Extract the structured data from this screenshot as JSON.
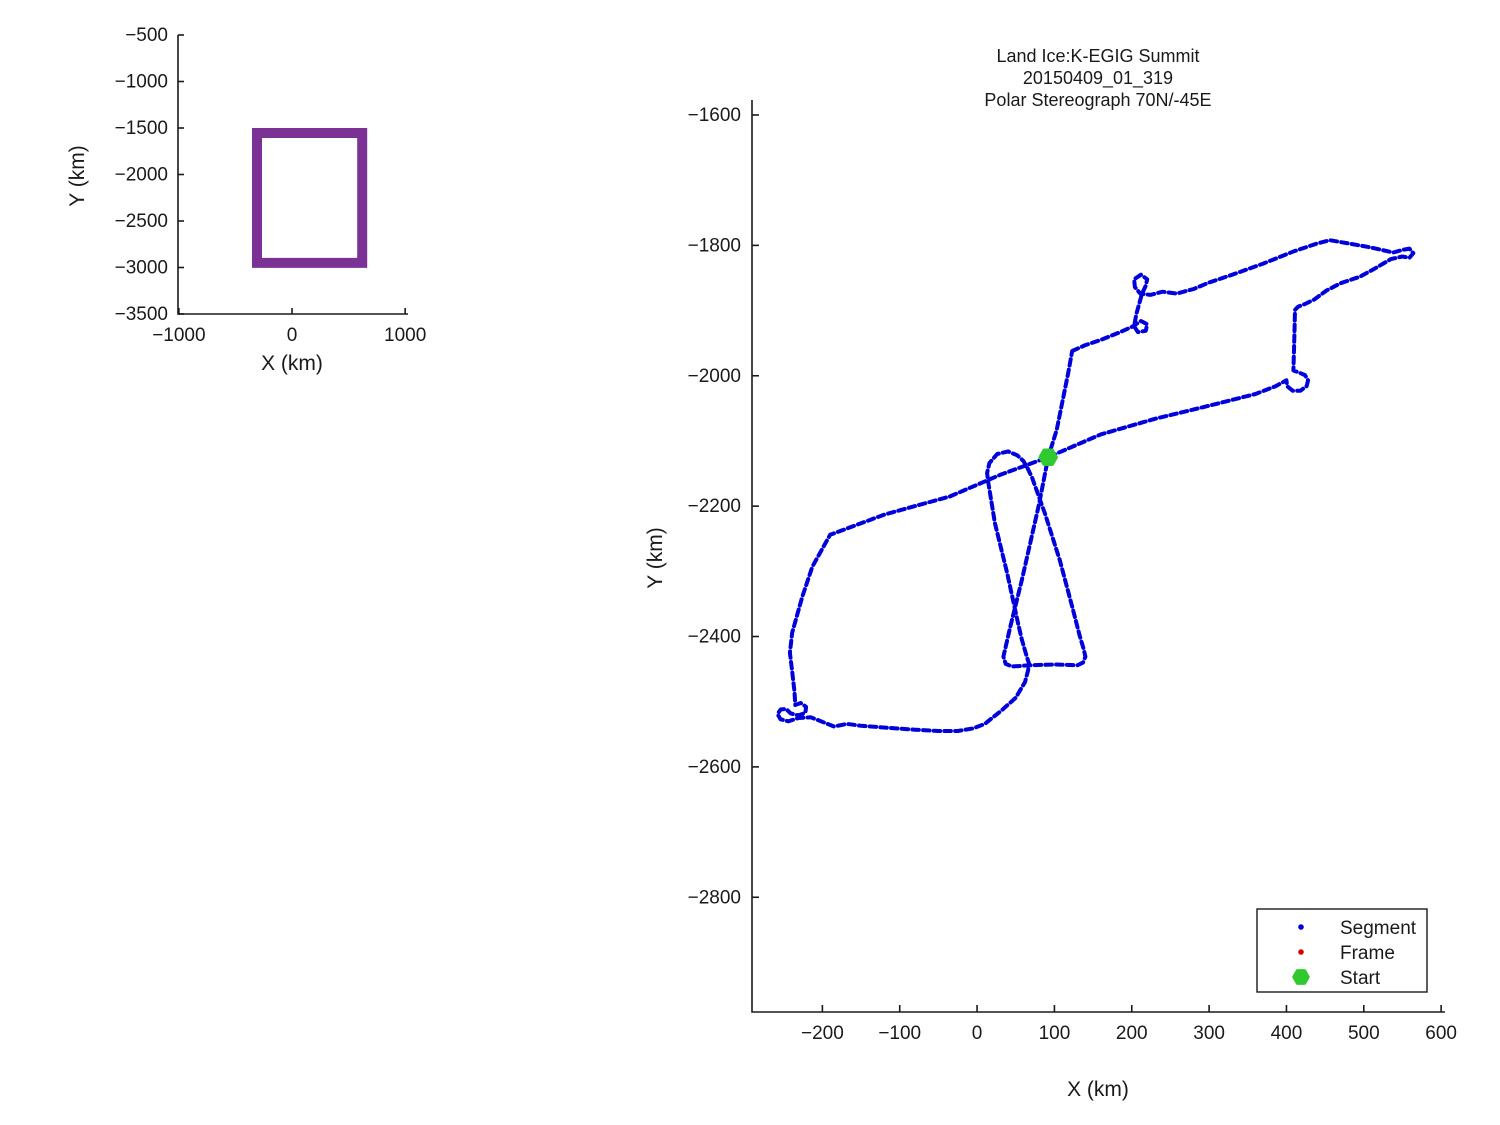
{
  "window": {
    "background": "#ffffff"
  },
  "chart_data": [
    {
      "id": "overview-extent",
      "type": "line",
      "xlabel": "X (km)",
      "ylabel": "Y (km)",
      "x_ticks": [
        -1000,
        0,
        1000
      ],
      "y_ticks": [
        -500,
        -1000,
        -1500,
        -2000,
        -2500,
        -3000,
        -3500
      ],
      "xlim": [
        -1008,
        1025
      ],
      "ylim": [
        -3500,
        -500
      ],
      "grid": false,
      "series": [
        {
          "name": "flight-extent-box",
          "color": "#7b3294",
          "line_width": 10,
          "style": "solid",
          "points": [
            [
              -310,
              -1554
            ],
            [
              620,
              -1554
            ],
            [
              620,
              -2951
            ],
            [
              -310,
              -2951
            ],
            [
              -310,
              -1554
            ]
          ]
        }
      ]
    },
    {
      "id": "flight-track",
      "type": "line",
      "title_lines": [
        "Land Ice:K-EGIG Summit",
        "20150409_01_319",
        "Polar Stereograph 70N/-45E"
      ],
      "xlabel": "X (km)",
      "ylabel": "Y (km)",
      "x_ticks": [
        -200,
        -100,
        0,
        100,
        200,
        300,
        400,
        500,
        600
      ],
      "y_ticks": [
        -1600,
        -1800,
        -2000,
        -2200,
        -2400,
        -2600,
        -2800
      ],
      "xlim": [
        -291,
        605
      ],
      "ylim": [
        -2976,
        -1577
      ],
      "grid": false,
      "colors": {
        "segment": "#0000dd",
        "frame": "#dd0000",
        "start": "#30c930"
      },
      "legend": {
        "position": "lower right",
        "items": [
          {
            "label": "Segment",
            "color": "#0000dd",
            "marker": "dot"
          },
          {
            "label": "Frame",
            "color": "#dd0000",
            "marker": "dot"
          },
          {
            "label": "Start",
            "color": "#30c930",
            "marker": "hex-star"
          }
        ]
      },
      "start_point": [
        92,
        -2125
      ],
      "series": [
        {
          "name": "segment-track",
          "color": "#0000dd",
          "line_width": 4,
          "style": "dotted",
          "points": [
            [
              123,
              -1962
            ],
            [
              140,
              -1953
            ],
            [
              160,
              -1945
            ],
            [
              185,
              -1933
            ],
            [
              200,
              -1925
            ],
            [
              212,
              -1916
            ],
            [
              220,
              -1921
            ],
            [
              218,
              -1931
            ],
            [
              208,
              -1933
            ],
            [
              203,
              -1924
            ],
            [
              206,
              -1905
            ],
            [
              210,
              -1888
            ],
            [
              213,
              -1875
            ],
            [
              218,
              -1862
            ],
            [
              220,
              -1852
            ],
            [
              212,
              -1845
            ],
            [
              203,
              -1852
            ],
            [
              204,
              -1864
            ],
            [
              211,
              -1874
            ],
            [
              224,
              -1876
            ],
            [
              240,
              -1871
            ],
            [
              258,
              -1874
            ],
            [
              280,
              -1867
            ],
            [
              300,
              -1857
            ],
            [
              330,
              -1845
            ],
            [
              370,
              -1828
            ],
            [
              410,
              -1809
            ],
            [
              440,
              -1797
            ],
            [
              456,
              -1792
            ],
            [
              480,
              -1797
            ],
            [
              508,
              -1803
            ],
            [
              538,
              -1811
            ],
            [
              550,
              -1807
            ],
            [
              559,
              -1805
            ],
            [
              564,
              -1812
            ],
            [
              559,
              -1819
            ],
            [
              550,
              -1817
            ],
            [
              535,
              -1821
            ],
            [
              515,
              -1835
            ],
            [
              495,
              -1848
            ],
            [
              470,
              -1858
            ],
            [
              452,
              -1869
            ],
            [
              436,
              -1883
            ],
            [
              424,
              -1890
            ],
            [
              415,
              -1894
            ],
            [
              411,
              -1899
            ],
            [
              410,
              -1950
            ],
            [
              409,
              -1992
            ],
            [
              416,
              -1995
            ],
            [
              424,
              -1999
            ],
            [
              428,
              -2007
            ],
            [
              426,
              -2016
            ],
            [
              418,
              -2023
            ],
            [
              408,
              -2023
            ],
            [
              401,
              -2016
            ],
            [
              400,
              -2007
            ],
            [
              386,
              -2016
            ],
            [
              360,
              -2028
            ],
            [
              300,
              -2046
            ],
            [
              230,
              -2066
            ],
            [
              160,
              -2090
            ],
            [
              92,
              -2125
            ],
            [
              30,
              -2152
            ],
            [
              -35,
              -2185
            ],
            [
              -120,
              -2213
            ],
            [
              -190,
              -2244
            ],
            [
              -213,
              -2293
            ],
            [
              -226,
              -2339
            ],
            [
              -239,
              -2394
            ],
            [
              -242,
              -2425
            ],
            [
              -239,
              -2454
            ],
            [
              -236,
              -2485
            ],
            [
              -235,
              -2505
            ],
            [
              -228,
              -2502
            ],
            [
              -221,
              -2508
            ],
            [
              -222,
              -2517
            ],
            [
              -231,
              -2521
            ],
            [
              -241,
              -2518
            ],
            [
              -247,
              -2511
            ],
            [
              -254,
              -2512
            ],
            [
              -258,
              -2519
            ],
            [
              -254,
              -2527
            ],
            [
              -244,
              -2530
            ],
            [
              -231,
              -2525
            ],
            [
              -215,
              -2524
            ],
            [
              -206,
              -2528
            ],
            [
              -185,
              -2538
            ],
            [
              -168,
              -2534
            ],
            [
              -150,
              -2537
            ],
            [
              -115,
              -2540
            ],
            [
              -80,
              -2543
            ],
            [
              -50,
              -2545
            ],
            [
              -25,
              -2545
            ],
            [
              -5,
              -2541
            ],
            [
              10,
              -2534
            ],
            [
              30,
              -2515
            ],
            [
              50,
              -2494
            ],
            [
              62,
              -2470
            ],
            [
              66,
              -2452
            ],
            [
              67,
              -2441
            ],
            [
              64,
              -2430
            ],
            [
              58,
              -2405
            ],
            [
              53,
              -2380
            ],
            [
              39,
              -2303
            ],
            [
              23,
              -2226
            ],
            [
              14,
              -2160
            ],
            [
              13,
              -2149
            ],
            [
              16,
              -2134
            ],
            [
              26,
              -2120
            ],
            [
              40,
              -2116
            ],
            [
              52,
              -2122
            ],
            [
              60,
              -2131
            ],
            [
              65,
              -2141
            ],
            [
              71,
              -2156
            ],
            [
              88,
              -2212
            ],
            [
              107,
              -2283
            ],
            [
              124,
              -2359
            ],
            [
              133,
              -2400
            ],
            [
              138,
              -2420
            ],
            [
              140,
              -2431
            ],
            [
              137,
              -2440
            ],
            [
              130,
              -2444
            ],
            [
              100,
              -2443
            ],
            [
              70,
              -2444
            ],
            [
              45,
              -2446
            ],
            [
              37,
              -2442
            ],
            [
              34,
              -2431
            ],
            [
              43,
              -2385
            ],
            [
              58,
              -2313
            ],
            [
              80,
              -2198
            ],
            [
              92,
              -2125
            ],
            [
              103,
              -2083
            ],
            [
              112,
              -2030
            ],
            [
              118,
              -1995
            ],
            [
              123,
              -1962
            ]
          ]
        }
      ]
    }
  ]
}
